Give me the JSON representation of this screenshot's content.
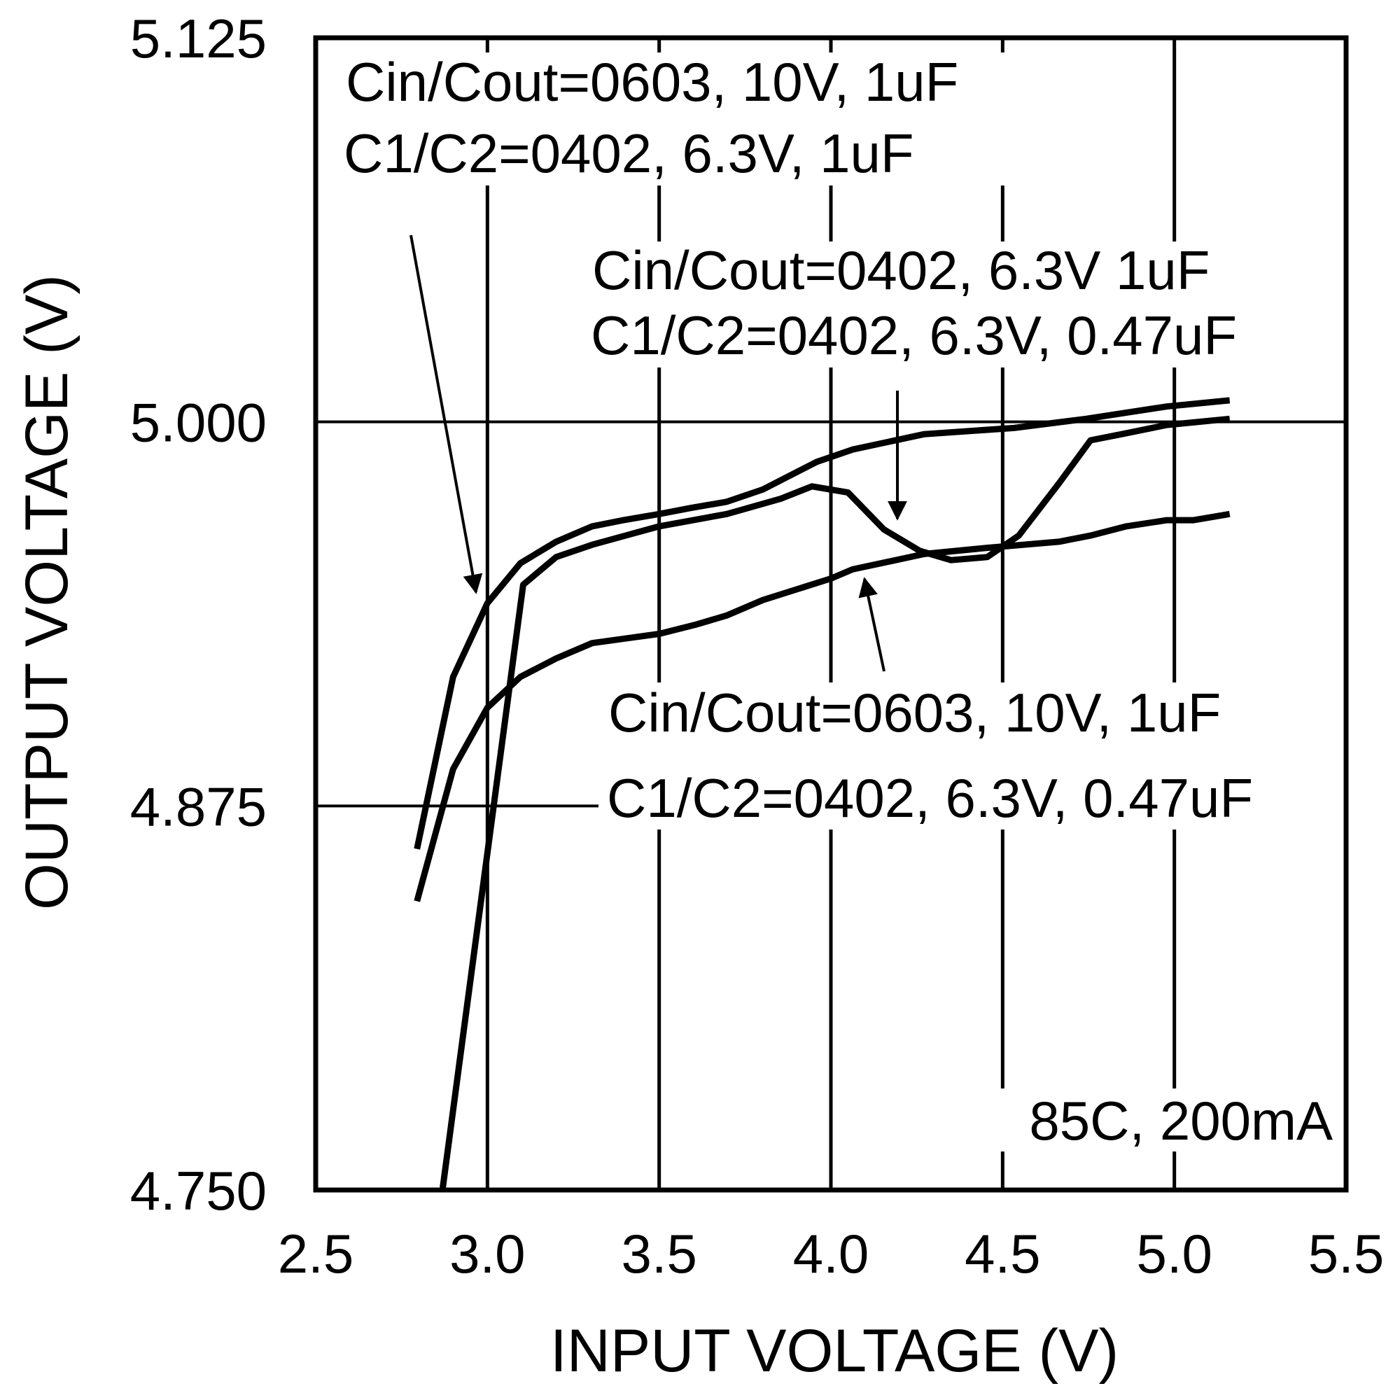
{
  "chart_data": {
    "type": "line",
    "xlabel": "INPUT VOLTAGE (V)",
    "ylabel": "OUTPUT VOLTAGE (V)",
    "xlim": [
      2.5,
      5.5
    ],
    "ylim": [
      4.75,
      5.125
    ],
    "x_ticks": [
      "2.5",
      "3.0",
      "3.5",
      "4.0",
      "4.5",
      "5.0",
      "5.5"
    ],
    "y_ticks": [
      "4.750",
      "4.875",
      "5.000",
      "5.125"
    ],
    "grid": true,
    "condition_label": "85C, 200mA",
    "line_color": "#000000",
    "series": [
      {
        "name": "Cin/Cout=0603, 10V, 1uF / C1/C2=0402, 6.3V, 1uF",
        "label_lines": [
          "Cin/Cout=0603, 10V, 1uF",
          "C1/C2=0402, 6.3V, 1uF"
        ],
        "x": [
          2.795,
          2.9,
          3.0,
          3.096,
          3.2,
          3.305,
          3.396,
          3.5,
          3.593,
          3.697,
          3.802,
          3.959,
          4.063,
          4.272,
          4.533,
          4.743,
          4.978,
          5.161
        ],
        "y": [
          4.861,
          4.917,
          4.941,
          4.954,
          4.961,
          4.966,
          4.968,
          4.97,
          4.972,
          4.974,
          4.978,
          4.987,
          4.991,
          4.996,
          4.998,
          5.001,
          5.005,
          5.007
        ]
      },
      {
        "name": "Cin/Cout=0402, 6.3V 1uF / C1/C2=0402, 6.3V, 0.47uF",
        "label_lines": [
          "Cin/Cout=0402, 6.3V 1uF",
          "C1/C2=0402, 6.3V, 0.47uF"
        ],
        "x": [
          2.869,
          3.104,
          3.2,
          3.305,
          3.5,
          3.697,
          3.854,
          3.945,
          4.05,
          4.154,
          4.259,
          4.35,
          4.455,
          4.547,
          4.664,
          4.756,
          4.847,
          4.978,
          5.161
        ],
        "y": [
          4.75,
          4.947,
          4.956,
          4.96,
          4.966,
          4.97,
          4.975,
          4.979,
          4.977,
          4.965,
          4.958,
          4.955,
          4.956,
          4.963,
          4.98,
          4.994,
          4.996,
          4.999,
          5.001
        ]
      },
      {
        "name": "Cin/Cout=0603, 10V, 1uF / C1/C2=0402, 6.3V, 0.47uF",
        "label_lines": [
          "Cin/Cout=0603, 10V, 1uF",
          "C1/C2=0402, 6.3V, 0.47uF"
        ],
        "x": [
          2.795,
          2.9,
          3.0,
          3.096,
          3.2,
          3.305,
          3.5,
          3.606,
          3.697,
          3.802,
          4.0,
          4.063,
          4.272,
          4.455,
          4.664,
          4.756,
          4.86,
          4.978,
          5.056,
          5.161
        ],
        "y": [
          4.844,
          4.887,
          4.907,
          4.917,
          4.923,
          4.928,
          4.931,
          4.934,
          4.937,
          4.942,
          4.949,
          4.952,
          4.957,
          4.959,
          4.961,
          4.963,
          4.966,
          4.968,
          4.968,
          4.97
        ]
      }
    ]
  }
}
